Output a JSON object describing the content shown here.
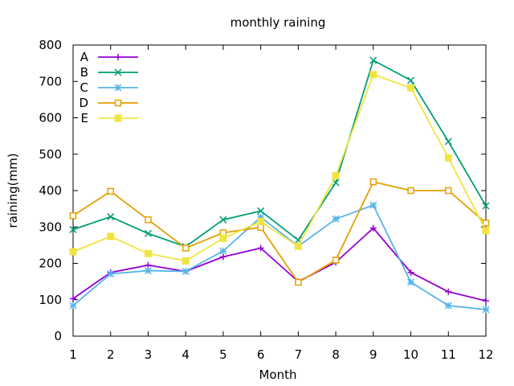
{
  "chart_data": {
    "type": "line",
    "title": "monthly raining",
    "xlabel": "Month",
    "ylabel": "raining(mm)",
    "xlim": [
      1,
      12
    ],
    "ylim": [
      0,
      800
    ],
    "x": [
      1,
      2,
      3,
      4,
      5,
      6,
      7,
      8,
      9,
      10,
      11,
      12
    ],
    "xticks": [
      "1",
      "2",
      "3",
      "4",
      "5",
      "6",
      "7",
      "8",
      "9",
      "10",
      "11",
      "12"
    ],
    "yticks": [
      "0",
      "100",
      "200",
      "300",
      "400",
      "500",
      "600",
      "700",
      "800"
    ],
    "grid": false,
    "legend_position": "top-left",
    "series": [
      {
        "name": "A",
        "color": "#9400d3",
        "marker": "plus",
        "values": [
          103,
          175,
          195,
          178,
          218,
          242,
          150,
          203,
          297,
          175,
          122,
          97
        ]
      },
      {
        "name": "B",
        "color": "#009e73",
        "marker": "cross",
        "values": [
          293,
          328,
          282,
          246,
          320,
          344,
          264,
          422,
          758,
          703,
          535,
          358
        ]
      },
      {
        "name": "C",
        "color": "#56b4e9",
        "marker": "star",
        "values": [
          84,
          171,
          180,
          178,
          234,
          327,
          247,
          322,
          360,
          148,
          84,
          73
        ]
      },
      {
        "name": "D",
        "color": "#e69f00",
        "marker": "box",
        "values": [
          331,
          398,
          320,
          242,
          284,
          299,
          148,
          209,
          424,
          400,
          400,
          311
        ]
      },
      {
        "name": "E",
        "color": "#f0e442",
        "marker": "filled-box",
        "values": [
          232,
          274,
          227,
          207,
          269,
          315,
          247,
          441,
          719,
          682,
          490,
          290
        ]
      }
    ]
  }
}
